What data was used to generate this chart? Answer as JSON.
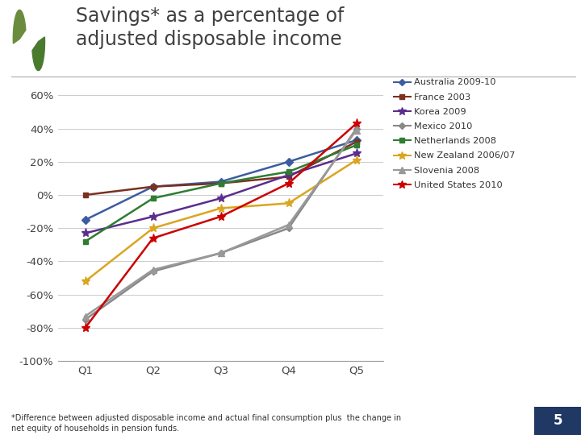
{
  "title_line1": "Savings* as a percentage of",
  "title_line2": "adjusted disposable income",
  "title_fontsize": 17,
  "x_labels": [
    "Q1",
    "Q2",
    "Q3",
    "Q4",
    "Q5"
  ],
  "x_vals": [
    1,
    2,
    3,
    4,
    5
  ],
  "series": [
    {
      "label": "Australia 2009-10",
      "color": "#3B5DA0",
      "marker": "D",
      "markersize": 5,
      "data": [
        -15,
        5,
        8,
        20,
        33
      ]
    },
    {
      "label": "France 2003",
      "color": "#7B3020",
      "marker": "s",
      "markersize": 5,
      "data": [
        0,
        5,
        7,
        11,
        32
      ]
    },
    {
      "label": "Korea 2009",
      "color": "#5B2D8E",
      "marker": "*",
      "markersize": 8,
      "data": [
        -23,
        -13,
        -2,
        12,
        25
      ]
    },
    {
      "label": "Mexico 2010",
      "color": "#888888",
      "marker": "D",
      "markersize": 4,
      "data": [
        -75,
        -46,
        -35,
        -20,
        40
      ]
    },
    {
      "label": "Netherlands 2008",
      "color": "#2E7D32",
      "marker": "s",
      "markersize": 5,
      "data": [
        -28,
        -2,
        7,
        14,
        30
      ]
    },
    {
      "label": "New Zealand 2006/07",
      "color": "#DAA520",
      "marker": "*",
      "markersize": 8,
      "data": [
        -52,
        -20,
        -8,
        -5,
        21
      ]
    },
    {
      "label": "Slovenia 2008",
      "color": "#999999",
      "marker": "^",
      "markersize": 6,
      "data": [
        -73,
        -45,
        -35,
        -18,
        39
      ]
    },
    {
      "label": "United States 2010",
      "color": "#CC0000",
      "marker": "*",
      "markersize": 8,
      "data": [
        -80,
        -26,
        -13,
        7,
        43
      ]
    }
  ],
  "ylim": [
    -100,
    65
  ],
  "yticks": [
    -100,
    -80,
    -60,
    -40,
    -20,
    0,
    20,
    40,
    60
  ],
  "ytick_labels": [
    "-100%",
    "-80%",
    "-60%",
    "-40%",
    "-20%",
    "0%",
    "20%",
    "40%",
    "60%"
  ],
  "footer_text": "*Difference between adjusted disposable income and actual final consumption plus  the change in\nnet equity of households in pension funds.",
  "page_number": "5",
  "bg_color": "#FFFFFF",
  "grid_color": "#CCCCCC",
  "linewidth": 1.8,
  "logo_color1": "#6B8C3E",
  "logo_color2": "#4A7A2E",
  "navy_color": "#1F3864",
  "title_color": "#404040"
}
